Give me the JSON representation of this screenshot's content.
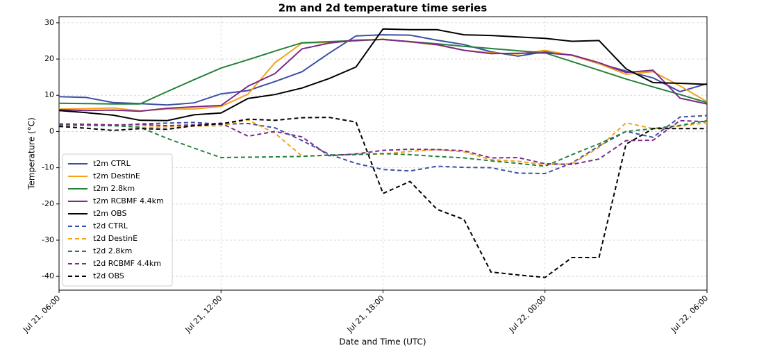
{
  "chart_data": {
    "type": "line",
    "title": "2m and 2d temperature time series",
    "x_label": "Date and Time (UTC)",
    "y_label": "Temperature (°C)",
    "x": [
      "Jul 21, 06:00",
      "Jul 21, 07:00",
      "Jul 21, 08:00",
      "Jul 21, 09:00",
      "Jul 21, 10:00",
      "Jul 21, 11:00",
      "Jul 21, 12:00",
      "Jul 21, 13:00",
      "Jul 21, 14:00",
      "Jul 21, 15:00",
      "Jul 21, 16:00",
      "Jul 21, 17:00",
      "Jul 21, 18:00",
      "Jul 21, 19:00",
      "Jul 21, 20:00",
      "Jul 21, 21:00",
      "Jul 21, 22:00",
      "Jul 21, 23:00",
      "Jul 22, 00:00",
      "Jul 22, 01:00",
      "Jul 22, 02:00",
      "Jul 22, 03:00",
      "Jul 22, 04:00",
      "Jul 22, 05:00",
      "Jul 22, 06:00"
    ],
    "xlim": [
      "Jul 21, 06:00",
      "Jul 22, 06:00"
    ],
    "xticks": [
      "Jul 21, 06:00",
      "Jul 21, 12:00",
      "Jul 21, 18:00",
      "Jul 22, 00:00",
      "Jul 22, 06:00"
    ],
    "ylim": [
      -43.8,
      31.7
    ],
    "yticks": [
      -40,
      -30,
      -20,
      -10,
      0,
      10,
      20,
      30
    ],
    "grid": true,
    "legend": "lower left",
    "series": [
      {
        "name": "t2m CTRL",
        "color": "#3b4fa5",
        "linestyle": "solid",
        "values": [
          9.6,
          9.4,
          8.0,
          7.7,
          7.3,
          7.9,
          10.4,
          11.3,
          13.8,
          16.5,
          21.6,
          26.4,
          26.7,
          26.6,
          25.2,
          24.0,
          22.0,
          20.8,
          22.0,
          21.0,
          18.7,
          16.7,
          14.8,
          11.0,
          13.2
        ]
      },
      {
        "name": "t2m DestinE",
        "color": "#f5a21b",
        "linestyle": "solid",
        "values": [
          6.2,
          6.3,
          6.5,
          5.7,
          6.2,
          6.2,
          6.9,
          10.3,
          19.0,
          24.4,
          24.6,
          25.0,
          25.5,
          24.7,
          23.9,
          22.4,
          21.7,
          21.4,
          22.4,
          21.0,
          18.7,
          15.8,
          16.5,
          12.6,
          8.2
        ]
      },
      {
        "name": "t2m 2.8km",
        "color": "#23823a",
        "linestyle": "solid",
        "values": [
          7.8,
          7.7,
          7.6,
          7.6,
          11.0,
          14.3,
          17.5,
          19.8,
          22.2,
          24.5,
          24.8,
          25.1,
          25.4,
          24.8,
          24.2,
          23.5,
          22.9,
          22.3,
          21.7,
          19.3,
          16.9,
          14.5,
          12.3,
          10.2,
          8.0
        ]
      },
      {
        "name": "t2m RCBMF 4.4km",
        "color": "#7b2a8a",
        "linestyle": "solid",
        "values": [
          6.0,
          5.8,
          5.9,
          5.6,
          6.4,
          6.8,
          7.2,
          12.5,
          16.0,
          22.8,
          24.4,
          25.2,
          25.4,
          24.8,
          24.0,
          22.4,
          21.5,
          21.6,
          21.7,
          21.1,
          19.0,
          16.3,
          16.9,
          9.2,
          7.6
        ]
      },
      {
        "name": "t2m OBS",
        "color": "#000000",
        "linestyle": "solid",
        "values": [
          5.8,
          5.2,
          4.5,
          3.1,
          3.0,
          4.6,
          5.1,
          9.1,
          10.2,
          12.0,
          14.6,
          17.8,
          28.3,
          28.1,
          28.1,
          26.7,
          26.5,
          26.1,
          25.7,
          24.9,
          25.1,
          17.3,
          13.5,
          13.3,
          13.0
        ]
      },
      {
        "name": "t2d CTRL",
        "color": "#3b4fa5",
        "linestyle": "dashed",
        "values": [
          2.0,
          2.0,
          1.6,
          2.1,
          2.3,
          2.5,
          2.0,
          2.2,
          1.0,
          -2.5,
          -6.3,
          -8.8,
          -10.5,
          -10.9,
          -9.6,
          -9.9,
          -10.0,
          -11.5,
          -11.6,
          -8.7,
          -4.0,
          0.0,
          -1.6,
          4.0,
          4.4
        ]
      },
      {
        "name": "t2d DestinE",
        "color": "#f5a21b",
        "linestyle": "dashed",
        "values": [
          2.0,
          2.0,
          1.8,
          1.1,
          1.3,
          1.5,
          1.6,
          3.2,
          -0.5,
          -6.8,
          -6.6,
          -6.2,
          -6.2,
          -5.5,
          -5.0,
          -5.6,
          -7.8,
          -8.2,
          -9.2,
          -8.9,
          -4.4,
          2.4,
          0.8,
          1.5,
          2.4
        ]
      },
      {
        "name": "t2d 2.8km",
        "color": "#23823a",
        "linestyle": "dashed",
        "values": [
          1.8,
          1.7,
          1.6,
          1.2,
          -1.9,
          -4.6,
          -7.2,
          -7.1,
          -7.0,
          -6.9,
          -6.5,
          -6.4,
          -6.1,
          -6.4,
          -6.9,
          -7.3,
          -8.1,
          -8.8,
          -9.6,
          -6.4,
          -3.4,
          0.0,
          0.8,
          1.7,
          3.0
        ]
      },
      {
        "name": "t2d RCBMF 4.4km",
        "color": "#7b2a8a",
        "linestyle": "dashed",
        "values": [
          2.1,
          2.0,
          1.8,
          1.9,
          1.6,
          1.8,
          2.3,
          -1.3,
          0.0,
          -1.5,
          -6.7,
          -6.2,
          -5.2,
          -4.9,
          -5.0,
          -5.3,
          -7.3,
          -7.2,
          -8.9,
          -9.1,
          -7.6,
          -2.5,
          -2.4,
          3.0,
          2.7
        ]
      },
      {
        "name": "t2d OBS",
        "color": "#000000",
        "linestyle": "dashed",
        "values": [
          1.4,
          0.9,
          0.3,
          0.8,
          0.6,
          1.6,
          2.1,
          3.4,
          3.1,
          3.8,
          3.9,
          2.6,
          -17.1,
          -13.8,
          -21.5,
          -24.3,
          -38.8,
          -39.6,
          -40.3,
          -34.8,
          -34.8,
          -3.5,
          0.8,
          0.8,
          0.8
        ]
      }
    ]
  }
}
